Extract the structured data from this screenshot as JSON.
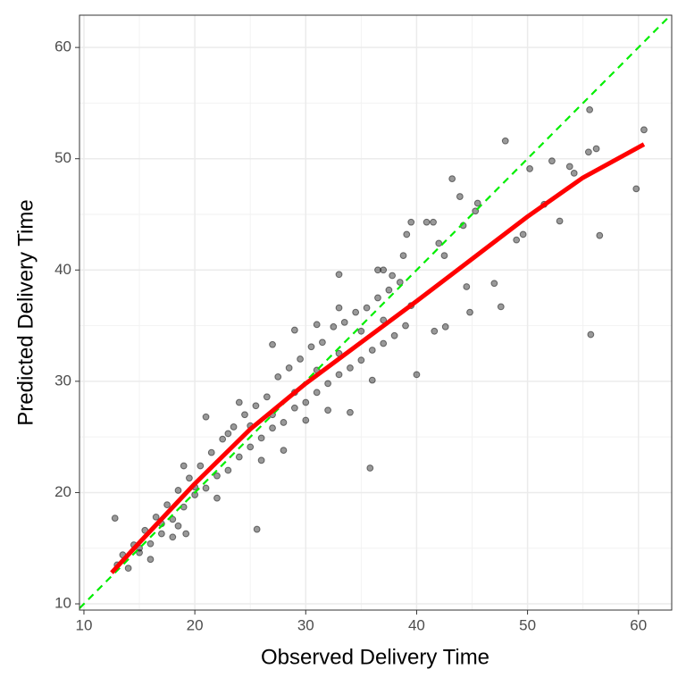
{
  "chart_data": {
    "type": "scatter",
    "x_label": "Observed Delivery Time",
    "y_label": "Predicted Delivery Time",
    "xlim": [
      9.6,
      63
    ],
    "ylim": [
      9.44,
      62.9
    ],
    "xticks": [
      10,
      20,
      30,
      40,
      50,
      60
    ],
    "yticks": [
      10,
      20,
      30,
      40,
      50,
      60
    ],
    "grid": true,
    "minor_grid": true,
    "series": [
      {
        "color": "#000000",
        "x": [
          13,
          13.5,
          14,
          14.5,
          15,
          15.5,
          16,
          16.5,
          17,
          17.5,
          18,
          18.5,
          19,
          19.5,
          20,
          20.5,
          21,
          21.5,
          22,
          22.5,
          23,
          23.5,
          24,
          24.5,
          25,
          25.5,
          26,
          26.5,
          27,
          27.5,
          28,
          28.5,
          29,
          29.5,
          30,
          30.5,
          31,
          31.5,
          32,
          32.5,
          33,
          33.5,
          34,
          34.5,
          35,
          35.5,
          36,
          36.5,
          37,
          37.5,
          38,
          38.5,
          39,
          39.5,
          21,
          22,
          24,
          26,
          27,
          28,
          29,
          30,
          31,
          32,
          33,
          34,
          36,
          37,
          16,
          19,
          23,
          25,
          27,
          29,
          31,
          33,
          35,
          20,
          17,
          15,
          12.8,
          25.6,
          35.8,
          55.7,
          59.8,
          60.5,
          56.5,
          48,
          55.6,
          56.2,
          55.5,
          52.2,
          50.2,
          53.8,
          54.2,
          51.5,
          52.9,
          47.6,
          47,
          49.6,
          49,
          43.2,
          43.9,
          45.5,
          45.3,
          44.2,
          41.5,
          39.5,
          40.9,
          39.1,
          42,
          42.5,
          44.5,
          44.8,
          40,
          41.6,
          42.6,
          33,
          36.5,
          37,
          37.8,
          38.8,
          18,
          18.5,
          19.2
        ],
        "y": [
          13.5,
          14.4,
          13.2,
          15.3,
          15.0,
          16.6,
          15.4,
          17.8,
          16.3,
          18.9,
          17.6,
          20.2,
          18.7,
          21.3,
          19.8,
          22.4,
          20.4,
          23.6,
          21.5,
          24.8,
          22.0,
          25.9,
          23.2,
          27.0,
          24.1,
          27.8,
          24.9,
          28.6,
          25.8,
          30.4,
          26.3,
          31.2,
          27.6,
          32.0,
          28.1,
          33.1,
          29.0,
          33.5,
          29.8,
          34.9,
          30.6,
          35.3,
          31.2,
          36.2,
          31.9,
          36.6,
          32.8,
          37.5,
          33.4,
          38.2,
          34.1,
          38.9,
          35.0,
          36.8,
          26.8,
          19.5,
          28.1,
          22.9,
          33.3,
          23.8,
          34.6,
          26.5,
          35.1,
          27.4,
          36.6,
          27.2,
          30.1,
          35.5,
          14.0,
          22.4,
          25.3,
          26.0,
          27.0,
          29.0,
          31.0,
          32.5,
          34.5,
          20.5,
          17.2,
          14.6,
          17.7,
          16.7,
          22.2,
          34.2,
          47.3,
          52.6,
          43.1,
          51.6,
          54.4,
          50.9,
          50.6,
          49.8,
          49.1,
          49.3,
          48.7,
          45.9,
          44.4,
          36.7,
          38.8,
          43.2,
          42.7,
          48.2,
          46.6,
          46,
          45.3,
          44,
          44.3,
          44.3,
          44.3,
          43.2,
          42.4,
          41.3,
          38.5,
          36.2,
          30.6,
          34.5,
          34.9,
          39.6,
          40,
          40,
          39.5,
          41.3,
          16,
          17,
          16.3
        ]
      },
      {
        "type": "line",
        "color": "#ff0000",
        "x": [
          12.5,
          15,
          20,
          25,
          30,
          35,
          40,
          45,
          50,
          55,
          60.5
        ],
        "y": [
          12.8,
          15.5,
          20.8,
          25.7,
          29.8,
          33.5,
          37.2,
          41,
          44.8,
          48.3,
          51.3
        ]
      }
    ],
    "reference_line": {
      "slope": 1,
      "intercept": 0,
      "color": "#00ee00",
      "dashed": true
    }
  }
}
